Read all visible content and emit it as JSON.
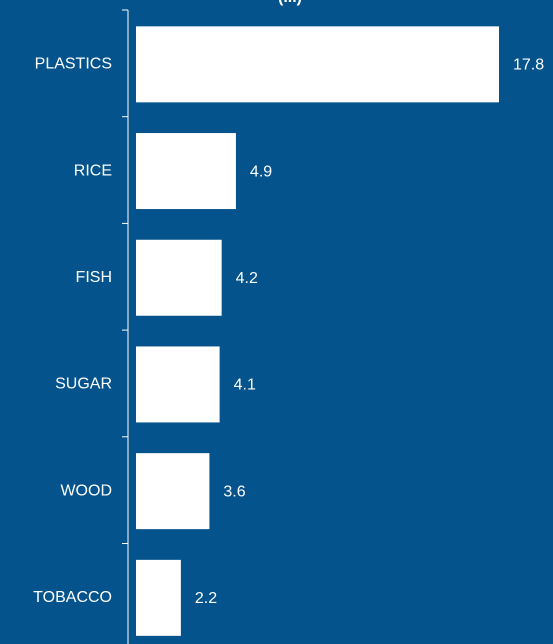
{
  "chart_data": {
    "type": "bar",
    "orientation": "horizontal",
    "title": "(...)",
    "categories": [
      "PLASTICS",
      "RICE",
      "FISH",
      "SUGAR",
      "WOOD",
      "TOBACCO"
    ],
    "values": [
      17.8,
      4.9,
      4.2,
      4.1,
      3.6,
      2.2
    ],
    "xlim": [
      0,
      19
    ],
    "grid": false,
    "colors": {
      "background": "#04538C",
      "bar": "#FFFFFF",
      "axis": "#FFFFFF",
      "text": "#FFFFFF"
    }
  }
}
